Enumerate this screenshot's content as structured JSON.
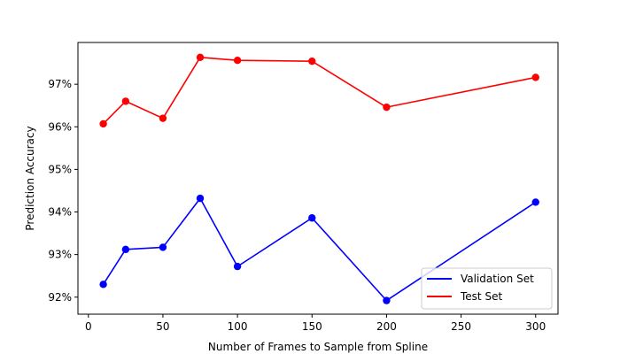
{
  "chart_data": {
    "type": "line",
    "xlabel": "Number of Frames to Sample from Spline",
    "ylabel": "Prediction Accuracy",
    "xlim": [
      -7,
      315
    ],
    "ylim": [
      91.6,
      97.98
    ],
    "xticks": [
      0,
      50,
      100,
      150,
      200,
      250,
      300
    ],
    "xtick_labels": [
      "0",
      "50",
      "100",
      "150",
      "200",
      "250",
      "300"
    ],
    "yticks": [
      92,
      93,
      94,
      95,
      96,
      97
    ],
    "ytick_labels": [
      "92%",
      "93%",
      "94%",
      "95%",
      "96%",
      "97%"
    ],
    "grid": false,
    "legend_position": "lower-right",
    "x": [
      10,
      25,
      50,
      75,
      100,
      150,
      200,
      300
    ],
    "series": [
      {
        "name": "Validation Set",
        "color": "#0000ff",
        "values": [
          92.3,
          93.12,
          93.17,
          94.32,
          92.72,
          93.86,
          91.92,
          94.23
        ]
      },
      {
        "name": "Test Set",
        "color": "#ff0000",
        "values": [
          96.07,
          96.6,
          96.2,
          97.63,
          97.56,
          97.54,
          96.46,
          97.16
        ]
      }
    ]
  }
}
